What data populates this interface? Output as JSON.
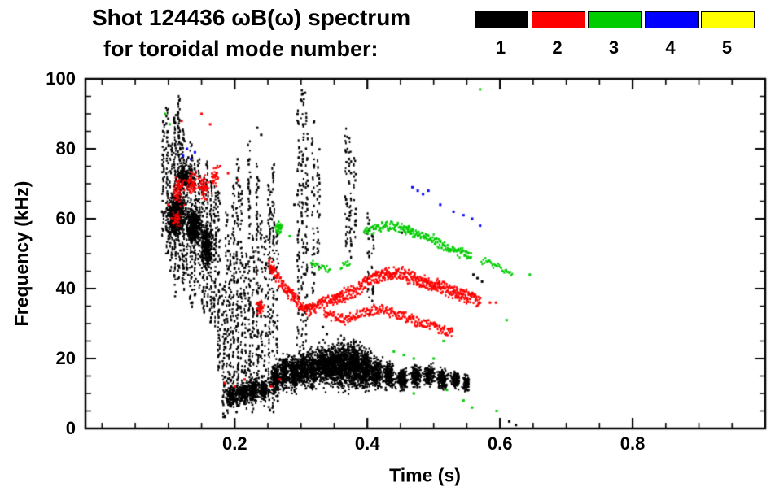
{
  "header": {
    "title_line1": "Shot 124436 ωB(ω) spectrum",
    "title_line2": "for toroidal mode number:"
  },
  "legend": {
    "items": [
      {
        "label": "1",
        "color": "#000000"
      },
      {
        "label": "2",
        "color": "#ff0000"
      },
      {
        "label": "3",
        "color": "#00cc00"
      },
      {
        "label": "4",
        "color": "#0000ff"
      },
      {
        "label": "5",
        "color": "#ffff00"
      }
    ]
  },
  "chart_data": {
    "type": "scatter",
    "title": "Shot 124436 ωB(ω) spectrum for toroidal mode number",
    "xlabel": "Time (s)",
    "ylabel": "Frequency (kHz)",
    "xlim": [
      -0.025,
      1.0
    ],
    "ylim": [
      0,
      100
    ],
    "grid": false,
    "legend_position": "top-right",
    "xticks": [
      {
        "value": 0.2,
        "label": "0.2"
      },
      {
        "value": 0.4,
        "label": "0.4"
      },
      {
        "value": 0.6,
        "label": "0.6"
      },
      {
        "value": 0.8,
        "label": "0.8"
      }
    ],
    "yticks": [
      {
        "value": 0,
        "label": "0"
      },
      {
        "value": 20,
        "label": "20"
      },
      {
        "value": 40,
        "label": "40"
      },
      {
        "value": 60,
        "label": "60"
      },
      {
        "value": 80,
        "label": "80"
      },
      {
        "value": 100,
        "label": "100"
      }
    ],
    "x_minor_step": 0.05,
    "y_minor_step": 5,
    "series": [
      {
        "name": "1",
        "mode": 1,
        "color": "#000000",
        "vstripes": [
          [
            0.092,
            55,
            88,
            0.7
          ],
          [
            0.098,
            50,
            92,
            0.8
          ],
          [
            0.104,
            45,
            82,
            0.8
          ],
          [
            0.11,
            38,
            90,
            0.9
          ],
          [
            0.116,
            42,
            95,
            0.85
          ],
          [
            0.122,
            40,
            86,
            0.9
          ],
          [
            0.128,
            44,
            78,
            0.8
          ],
          [
            0.134,
            35,
            82,
            0.7
          ],
          [
            0.14,
            38,
            76,
            0.8
          ],
          [
            0.146,
            40,
            78,
            0.7
          ],
          [
            0.152,
            32,
            72,
            0.8
          ],
          [
            0.158,
            34,
            76,
            0.7
          ],
          [
            0.164,
            30,
            72,
            0.7
          ],
          [
            0.17,
            28,
            70,
            0.6
          ],
          [
            0.176,
            12,
            68,
            0.6
          ],
          [
            0.183,
            3,
            42,
            0.6
          ],
          [
            0.188,
            4,
            62,
            0.5
          ],
          [
            0.193,
            5,
            56,
            0.6
          ],
          [
            0.198,
            6,
            72,
            0.5
          ],
          [
            0.204,
            5,
            78,
            0.6
          ],
          [
            0.21,
            8,
            70,
            0.5
          ],
          [
            0.216,
            6,
            52,
            0.5
          ],
          [
            0.222,
            8,
            84,
            0.55
          ],
          [
            0.228,
            5,
            56,
            0.5
          ],
          [
            0.234,
            10,
            77,
            0.6
          ],
          [
            0.24,
            8,
            62,
            0.5
          ],
          [
            0.246,
            6,
            56,
            0.5
          ],
          [
            0.252,
            5,
            70,
            0.55
          ],
          [
            0.258,
            5,
            76,
            0.6
          ],
          [
            0.264,
            6,
            58,
            0.5
          ],
          [
            0.296,
            22,
            92,
            0.45
          ],
          [
            0.302,
            15,
            97,
            0.5
          ],
          [
            0.308,
            25,
            90,
            0.45
          ],
          [
            0.318,
            35,
            88,
            0.4
          ],
          [
            0.326,
            45,
            82,
            0.35
          ],
          [
            0.368,
            52,
            86,
            0.5
          ],
          [
            0.374,
            48,
            83,
            0.5
          ],
          [
            0.381,
            55,
            78,
            0.4
          ],
          [
            0.402,
            32,
            62,
            0.4
          ],
          [
            0.408,
            36,
            58,
            0.35
          ]
        ],
        "blobs": [
          [
            0.112,
            61,
            0.018,
            8,
            600
          ],
          [
            0.138,
            58,
            0.014,
            7,
            420
          ],
          [
            0.158,
            52,
            0.012,
            8,
            300
          ],
          [
            0.125,
            72,
            0.018,
            5,
            180
          ],
          [
            0.196,
            9,
            0.012,
            4,
            160
          ],
          [
            0.212,
            10,
            0.012,
            4,
            160
          ],
          [
            0.228,
            11,
            0.012,
            5,
            190
          ],
          [
            0.244,
            11,
            0.01,
            4,
            160
          ],
          [
            0.262,
            14,
            0.01,
            6,
            200
          ],
          [
            0.275,
            16,
            0.011,
            7,
            240
          ],
          [
            0.289,
            16,
            0.011,
            7,
            240
          ],
          [
            0.303,
            17,
            0.012,
            7,
            260
          ],
          [
            0.317,
            17,
            0.012,
            7,
            260
          ],
          [
            0.331,
            18,
            0.013,
            7,
            280
          ],
          [
            0.346,
            18,
            0.016,
            8,
            380
          ],
          [
            0.363,
            18,
            0.018,
            9,
            480
          ],
          [
            0.381,
            18,
            0.016,
            9,
            430
          ],
          [
            0.398,
            17,
            0.014,
            8,
            330
          ],
          [
            0.413,
            16,
            0.012,
            6,
            240
          ],
          [
            0.433,
            15,
            0.012,
            5,
            190
          ],
          [
            0.453,
            14,
            0.011,
            4,
            160
          ],
          [
            0.473,
            15,
            0.011,
            4,
            160
          ],
          [
            0.493,
            15,
            0.012,
            4,
            170
          ],
          [
            0.513,
            14,
            0.011,
            4,
            160
          ],
          [
            0.533,
            14,
            0.009,
            3,
            130
          ],
          [
            0.549,
            13,
            0.007,
            3,
            90
          ]
        ],
        "bands": [],
        "points": [
          [
            0.56,
            44
          ],
          [
            0.566,
            43
          ],
          [
            0.573,
            42
          ],
          [
            0.3,
            94
          ],
          [
            0.306,
            96
          ],
          [
            0.614,
            2
          ],
          [
            0.624,
            1
          ],
          [
            0.452,
            56
          ],
          [
            0.29,
            64
          ],
          [
            0.333,
            29
          ],
          [
            0.339,
            27
          ],
          [
            0.234,
            86
          ],
          [
            0.24,
            84
          ]
        ]
      },
      {
        "name": "2",
        "mode": 2,
        "color": "#ff0000",
        "vstripes": [],
        "blobs": [
          [
            0.115,
            68,
            0.012,
            6,
            70
          ],
          [
            0.135,
            70,
            0.012,
            5,
            60
          ],
          [
            0.155,
            69,
            0.012,
            5,
            55
          ],
          [
            0.171,
            72,
            0.008,
            4,
            35
          ],
          [
            0.238,
            35,
            0.008,
            3,
            45
          ],
          [
            0.112,
            60,
            0.01,
            3,
            40
          ]
        ],
        "bands": [
          {
            "width": 3.5,
            "density": 3.5,
            "points": [
              [
                0.252,
                47
              ],
              [
                0.262,
                44
              ],
              [
                0.272,
                41
              ],
              [
                0.282,
                39
              ],
              [
                0.292,
                37
              ],
              [
                0.302,
                35
              ],
              [
                0.312,
                34
              ],
              [
                0.322,
                35
              ],
              [
                0.335,
                36
              ],
              [
                0.35,
                37
              ],
              [
                0.365,
                38
              ],
              [
                0.38,
                39
              ],
              [
                0.395,
                41
              ],
              [
                0.41,
                43
              ],
              [
                0.425,
                44
              ],
              [
                0.44,
                44
              ],
              [
                0.455,
                44
              ],
              [
                0.47,
                43
              ],
              [
                0.485,
                42
              ],
              [
                0.5,
                41
              ],
              [
                0.515,
                40
              ],
              [
                0.53,
                39
              ],
              [
                0.545,
                38
              ],
              [
                0.56,
                37
              ],
              [
                0.572,
                36
              ]
            ]
          },
          {
            "width": 2.5,
            "density": 2,
            "points": [
              [
                0.335,
                33
              ],
              [
                0.35,
                32
              ],
              [
                0.365,
                31
              ],
              [
                0.38,
                32
              ],
              [
                0.395,
                33
              ],
              [
                0.41,
                34
              ],
              [
                0.425,
                34
              ],
              [
                0.44,
                33
              ],
              [
                0.455,
                32
              ],
              [
                0.47,
                31
              ],
              [
                0.485,
                30
              ],
              [
                0.5,
                29
              ],
              [
                0.515,
                28
              ],
              [
                0.53,
                27
              ]
            ]
          }
        ],
        "points": [
          [
            0.12,
            88
          ],
          [
            0.15,
            90
          ],
          [
            0.163,
            87
          ],
          [
            0.1,
            64
          ],
          [
            0.178,
            75
          ],
          [
            0.185,
            13
          ],
          [
            0.2,
            12
          ],
          [
            0.215,
            14
          ],
          [
            0.255,
            12
          ],
          [
            0.268,
            14
          ],
          [
            0.585,
            36
          ],
          [
            0.594,
            36
          ],
          [
            0.19,
            73
          ],
          [
            0.205,
            71
          ]
        ]
      },
      {
        "name": "3",
        "mode": 3,
        "color": "#00cc00",
        "vstripes": [],
        "blobs": [
          [
            0.267,
            57,
            0.007,
            2.5,
            40
          ]
        ],
        "bands": [
          {
            "width": 2.5,
            "density": 2.2,
            "points": [
              [
                0.395,
                56
              ],
              [
                0.41,
                57
              ],
              [
                0.425,
                58
              ],
              [
                0.44,
                58
              ],
              [
                0.455,
                57
              ],
              [
                0.47,
                56
              ],
              [
                0.485,
                55
              ],
              [
                0.5,
                54
              ],
              [
                0.515,
                52
              ],
              [
                0.53,
                51
              ],
              [
                0.545,
                50
              ],
              [
                0.558,
                49
              ]
            ]
          },
          {
            "width": 2,
            "density": 0.8,
            "points": [
              [
                0.572,
                48
              ],
              [
                0.59,
                47
              ],
              [
                0.605,
                45
              ],
              [
                0.62,
                44
              ],
              [
                0.638,
                44
              ]
            ]
          },
          {
            "width": 2,
            "density": 0.7,
            "points": [
              [
                0.3,
                50
              ],
              [
                0.315,
                48
              ],
              [
                0.33,
                46
              ],
              [
                0.345,
                45
              ],
              [
                0.36,
                46
              ],
              [
                0.375,
                48
              ],
              [
                0.39,
                52
              ]
            ]
          }
        ],
        "points": [
          [
            0.57,
            97
          ],
          [
            0.095,
            90
          ],
          [
            0.102,
            87
          ],
          [
            0.283,
            55
          ],
          [
            0.44,
            22
          ],
          [
            0.455,
            21
          ],
          [
            0.47,
            20
          ],
          [
            0.5,
            20
          ],
          [
            0.515,
            25
          ],
          [
            0.545,
            8
          ],
          [
            0.558,
            6
          ],
          [
            0.595,
            5
          ],
          [
            0.47,
            10
          ],
          [
            0.52,
            11
          ],
          [
            0.61,
            31
          ],
          [
            0.645,
            44
          ]
        ]
      },
      {
        "name": "4",
        "mode": 4,
        "color": "#0000ff",
        "vstripes": [],
        "blobs": [],
        "bands": [],
        "points": [
          [
            0.122,
            78
          ],
          [
            0.128,
            80
          ],
          [
            0.134,
            77
          ],
          [
            0.14,
            79
          ],
          [
            0.468,
            69
          ],
          [
            0.476,
            68
          ],
          [
            0.484,
            67
          ],
          [
            0.492,
            68
          ],
          [
            0.51,
            64
          ],
          [
            0.53,
            62
          ],
          [
            0.545,
            61
          ],
          [
            0.558,
            60
          ],
          [
            0.57,
            58
          ]
        ]
      },
      {
        "name": "5",
        "mode": 5,
        "color": "#ffff00",
        "vstripes": [],
        "blobs": [],
        "bands": [],
        "points": []
      }
    ]
  }
}
